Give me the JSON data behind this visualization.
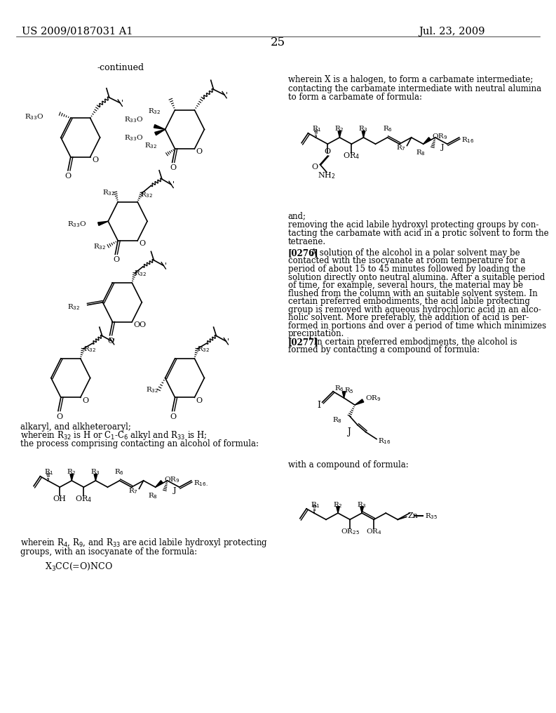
{
  "background_color": "#ffffff",
  "page_number": "25",
  "patent_number": "US 2009/0187031 A1",
  "patent_date": "Jul. 23, 2009",
  "line_color": "#000000",
  "text_color": "#000000"
}
